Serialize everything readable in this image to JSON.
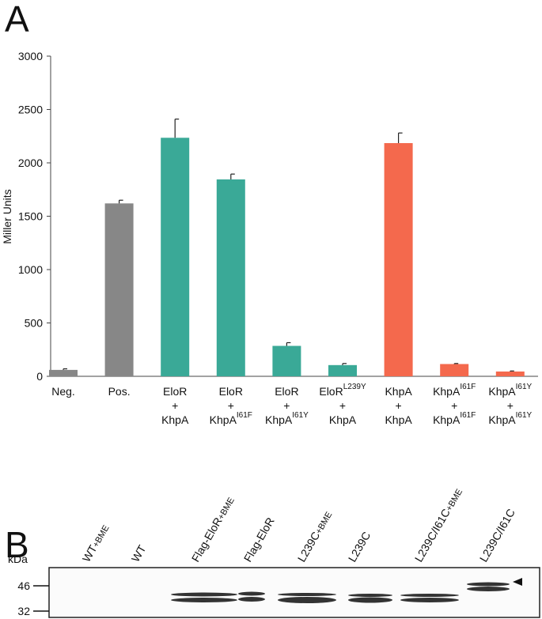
{
  "panel_labels": [
    "A",
    "B"
  ],
  "chart_data": {
    "type": "bar",
    "ylabel": "Miller Units",
    "categories": [
      [
        "Neg."
      ],
      [
        "Pos."
      ],
      [
        "EloR",
        "+",
        "KhpA"
      ],
      [
        "EloR",
        "+",
        {
          "text": "KhpA",
          "sup": "I61F"
        }
      ],
      [
        "EloR",
        "+",
        {
          "text": "KhpA",
          "sup": "I61Y"
        }
      ],
      [
        {
          "text": "EloR",
          "sup": "L239Y"
        },
        "+",
        "KhpA"
      ],
      [
        "KhpA",
        "+",
        "KhpA"
      ],
      [
        {
          "text": "KhpA",
          "sup": "I61F"
        },
        "+",
        {
          "text": "KhpA",
          "sup": "I61F"
        }
      ],
      [
        {
          "text": "KhpA",
          "sup": "I61Y"
        },
        "+",
        {
          "text": "KhpA",
          "sup": "I61Y"
        }
      ]
    ],
    "values": [
      60,
      1620,
      2235,
      1845,
      285,
      105,
      2185,
      115,
      45
    ],
    "errors": [
      10,
      30,
      175,
      50,
      30,
      15,
      95,
      5,
      5
    ],
    "colors": [
      "#878787",
      "#878787",
      "#3aa997",
      "#3aa997",
      "#3aa997",
      "#3aa997",
      "#f4694d",
      "#f4694d",
      "#f4694d"
    ],
    "ylim": [
      0,
      3000
    ],
    "yticks": [
      0,
      500,
      1000,
      1500,
      2000,
      2500,
      3000
    ]
  },
  "blot": {
    "unit_label": "kDa",
    "markers": [
      46,
      32
    ],
    "lanes": [
      {
        "text": "WT",
        "sub": "+BME"
      },
      {
        "text": "WT"
      },
      {
        "text": "Flag-EloR",
        "sub": "+BME"
      },
      {
        "text": "Flag-EloR"
      },
      {
        "text": "L239C",
        "sub": "+BME"
      },
      {
        "text": "L239C"
      },
      {
        "text": "L239C/I61C",
        "sub": "+BME"
      },
      {
        "text": "L239C/I61C"
      }
    ]
  }
}
